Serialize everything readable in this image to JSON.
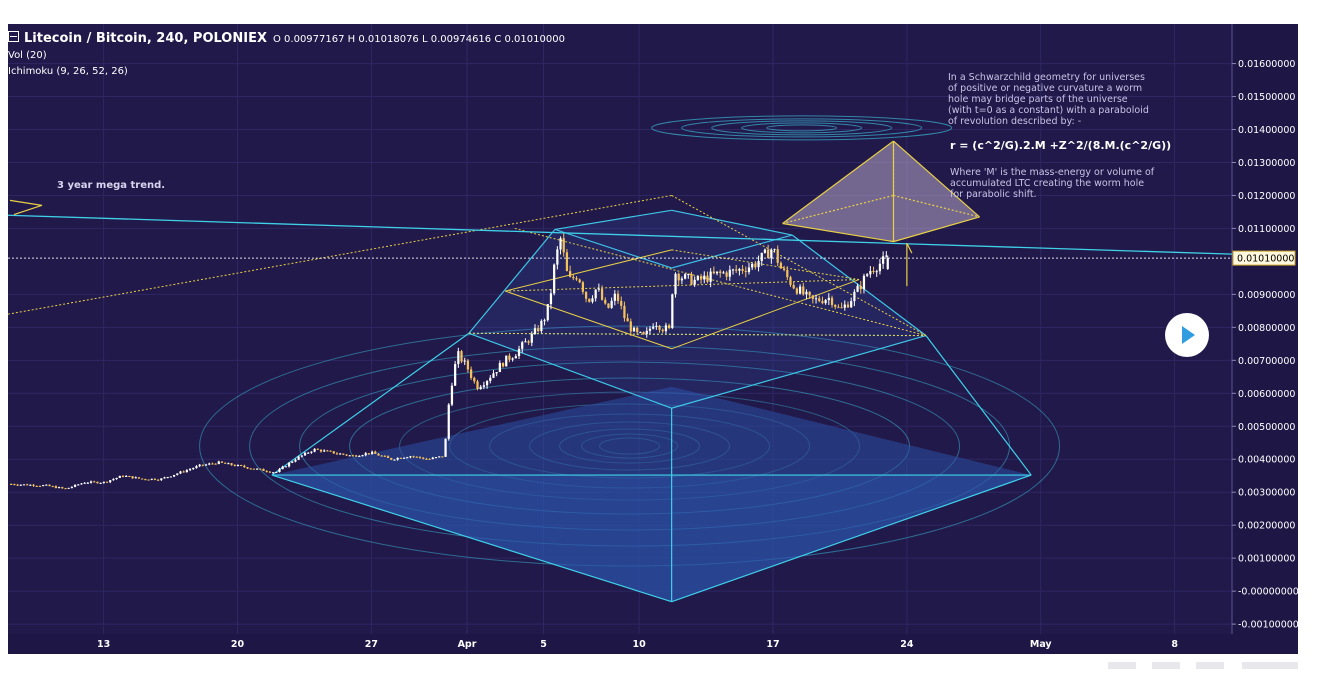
{
  "header": {
    "symbol_title": "Litecoin / Bitcoin, 240, POLONIEX",
    "ohlc": "O 0.00977167 H 0.01018076 L 0.00974616 C 0.01010000",
    "indicator_vol": "Vol (20)",
    "indicator_ichimoku": "Ichimoku (9, 26, 52, 26)"
  },
  "annotations": {
    "trend_label": "3 year mega trend.",
    "note_lines": [
      "In a Schwarzchild geometry for universes",
      "of positive or negative curvature a worm",
      "hole may bridge parts of the universe",
      "(with t=0 as a constant) with a paraboloid",
      "of revolution described by: -"
    ],
    "formula": "r = (c^2/G).2.M +Z^2/(8.M.(c^2/G))",
    "note2_lines": [
      "Where 'M' is the mass-energy or volume of",
      "accumulated LTC creating the worm hole",
      "for parabolic shift."
    ]
  },
  "colors": {
    "background": "#21194a",
    "grid": "#2e2763",
    "candle_up": "#ffffff",
    "candle_down": "#f5c15c",
    "cyan": "#3fd1ea",
    "gold": "#e8d046",
    "axis_bg": "#1e1746",
    "axis_text": "#ffffff",
    "price_tag": "#fff8dc"
  },
  "play_button": {
    "icon": "play-icon"
  },
  "chart_data": {
    "type": "candlestick",
    "title": "Litecoin / Bitcoin, 240, POLONIEX",
    "current_price": "0.01010000",
    "y_ticks": [
      "0.01600000",
      "0.01500000",
      "0.01400000",
      "0.01300000",
      "0.01200000",
      "0.01100000",
      "0.00900000",
      "0.00800000",
      "0.00700000",
      "0.00600000",
      "0.00500000",
      "0.00400000",
      "0.00300000",
      "0.00200000",
      "0.00100000",
      "-0.00000000",
      "-0.00100000"
    ],
    "y_tick_values": [
      0.016,
      0.015,
      0.014,
      0.013,
      0.012,
      0.011,
      0.009,
      0.008,
      0.007,
      0.006,
      0.005,
      0.004,
      0.003,
      0.002,
      0.001,
      0.0,
      -0.001
    ],
    "ylim": [
      -0.0013,
      0.0172
    ],
    "x_ticks": [
      {
        "label": "13",
        "day": 13
      },
      {
        "label": "20",
        "day": 20
      },
      {
        "label": "27",
        "day": 27
      },
      {
        "label": "Apr",
        "day": 32
      },
      {
        "label": "5",
        "day": 36
      },
      {
        "label": "10",
        "day": 41
      },
      {
        "label": "17",
        "day": 48
      },
      {
        "label": "24",
        "day": 55
      },
      {
        "label": "May",
        "day": 62
      },
      {
        "label": "8",
        "day": 69
      }
    ],
    "xlim": [
      8.0,
      72.0
    ],
    "price_path": [
      [
        8.0,
        0.00325
      ],
      [
        10,
        0.0032
      ],
      [
        11,
        0.0031
      ],
      [
        12,
        0.0033
      ],
      [
        13,
        0.0033
      ],
      [
        14,
        0.0035
      ],
      [
        15,
        0.0034
      ],
      [
        16,
        0.0034
      ],
      [
        17,
        0.0036
      ],
      [
        18,
        0.0038
      ],
      [
        19,
        0.0039
      ],
      [
        20,
        0.0038
      ],
      [
        21,
        0.0037
      ],
      [
        22,
        0.0036
      ],
      [
        23,
        0.004
      ],
      [
        24,
        0.0043
      ],
      [
        25,
        0.0042
      ],
      [
        26,
        0.0041
      ],
      [
        27,
        0.0042
      ],
      [
        28,
        0.004
      ],
      [
        29,
        0.0041
      ],
      [
        30,
        0.004
      ],
      [
        30.8,
        0.0041
      ],
      [
        31.1,
        0.006
      ],
      [
        31.5,
        0.0072
      ],
      [
        32,
        0.0068
      ],
      [
        32.5,
        0.0062
      ],
      [
        33,
        0.0064
      ],
      [
        33.5,
        0.0067
      ],
      [
        34,
        0.007
      ],
      [
        34.5,
        0.0072
      ],
      [
        35,
        0.0075
      ],
      [
        35.5,
        0.0078
      ],
      [
        36,
        0.0082
      ],
      [
        36.3,
        0.0087
      ],
      [
        36.6,
        0.01
      ],
      [
        36.9,
        0.0107
      ],
      [
        37.3,
        0.0094
      ],
      [
        37.8,
        0.0096
      ],
      [
        38.3,
        0.0088
      ],
      [
        38.8,
        0.0092
      ],
      [
        39.3,
        0.0085
      ],
      [
        39.8,
        0.009
      ],
      [
        40.3,
        0.0082
      ],
      [
        40.8,
        0.0078
      ],
      [
        41.3,
        0.0077
      ],
      [
        41.8,
        0.0082
      ],
      [
        42.2,
        0.008
      ],
      [
        42.6,
        0.0079
      ],
      [
        42.8,
        0.0097
      ],
      [
        43.3,
        0.0095
      ],
      [
        44,
        0.0094
      ],
      [
        45,
        0.0096
      ],
      [
        46,
        0.0097
      ],
      [
        47,
        0.0099
      ],
      [
        48,
        0.0104
      ],
      [
        48.4,
        0.0098
      ],
      [
        49,
        0.0093
      ],
      [
        50,
        0.0088
      ],
      [
        51,
        0.0089
      ],
      [
        51.5,
        0.0085
      ],
      [
        52,
        0.0088
      ],
      [
        52.5,
        0.0092
      ],
      [
        53,
        0.0097
      ],
      [
        53.5,
        0.0099
      ],
      [
        54,
        0.0101
      ]
    ]
  }
}
